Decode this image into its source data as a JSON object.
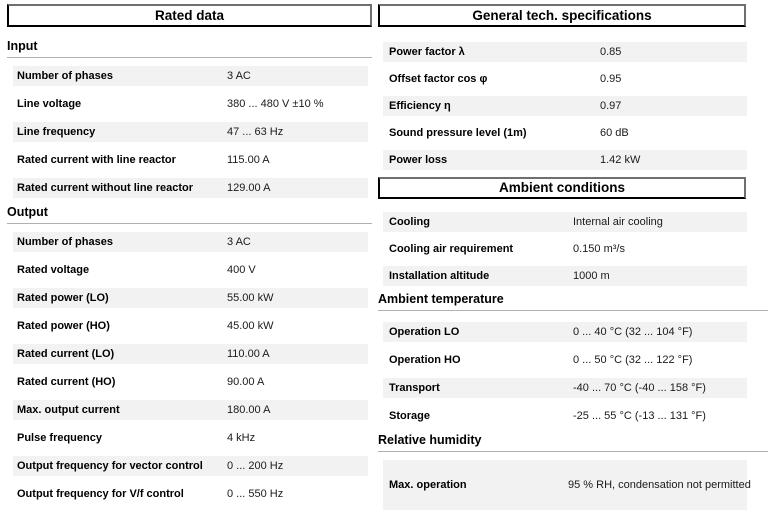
{
  "colors": {
    "row_band": "#f2f2f2",
    "heading_rule": "#b0b0b0",
    "box_border_dark": "#000000",
    "box_border_light": "#6f6f6f"
  },
  "left": {
    "title": "Rated data",
    "sections": [
      {
        "heading": "Input",
        "rows": [
          {
            "label": "Number of phases",
            "value": "3 AC"
          },
          {
            "label": "Line voltage",
            "value": "380 ... 480 V ±10 %"
          },
          {
            "label": "Line frequency",
            "value": "47 ... 63 Hz"
          },
          {
            "label": "Rated current with line reactor",
            "value": "115.00 A"
          },
          {
            "label": "Rated current without line reactor",
            "value": "129.00 A"
          }
        ]
      },
      {
        "heading": "Output",
        "rows": [
          {
            "label": "Number of phases",
            "value": "3 AC"
          },
          {
            "label": "Rated voltage",
            "value": "400 V"
          },
          {
            "label": "Rated power (LO)",
            "value": "55.00 kW"
          },
          {
            "label": "Rated power (HO)",
            "value": "45.00 kW"
          },
          {
            "label": "Rated current (LO)",
            "value": "110.00 A"
          },
          {
            "label": "Rated current (HO)",
            "value": "90.00 A"
          },
          {
            "label": "Max. output current",
            "value": "180.00 A"
          },
          {
            "label": "Pulse frequency",
            "value": "4 kHz"
          },
          {
            "label": "Output frequency for vector control",
            "value": "0 ... 200 Hz"
          },
          {
            "label": "Output frequency for V/f control",
            "value": "0 ... 550 Hz"
          }
        ]
      }
    ]
  },
  "right": {
    "general": {
      "title": "General tech. specifications",
      "rows": [
        {
          "label": "Power factor λ",
          "value": "0.85"
        },
        {
          "label": "Offset factor cos φ",
          "value": "0.95"
        },
        {
          "label": "Efficiency η",
          "value": "0.97"
        },
        {
          "label": "Sound pressure level (1m)",
          "value": "60 dB"
        },
        {
          "label": "Power loss",
          "value": "1.42 kW"
        }
      ]
    },
    "ambient": {
      "title": "Ambient conditions",
      "rows": [
        {
          "label": "Cooling",
          "value": "Internal air cooling"
        },
        {
          "label": "Cooling air requirement",
          "value": "0.150 m³/s"
        },
        {
          "label": "Installation altitude",
          "value": "1000 m"
        }
      ],
      "temperature": {
        "heading": "Ambient temperature",
        "rows": [
          {
            "label": "Operation LO",
            "value": "0 ... 40 °C (32 ... 104 °F)"
          },
          {
            "label": "Operation HO",
            "value": "0 ... 50 °C (32 ... 122 °F)"
          },
          {
            "label": "Transport",
            "value": "-40 ... 70 °C (-40 ... 158 °F)"
          },
          {
            "label": "Storage",
            "value": "-25 ... 55 °C (-13 ... 131 °F)"
          }
        ]
      },
      "humidity": {
        "heading": "Relative humidity",
        "rows": [
          {
            "label": "Max. operation",
            "value": "95 % RH, condensation not permitted"
          }
        ]
      }
    }
  }
}
